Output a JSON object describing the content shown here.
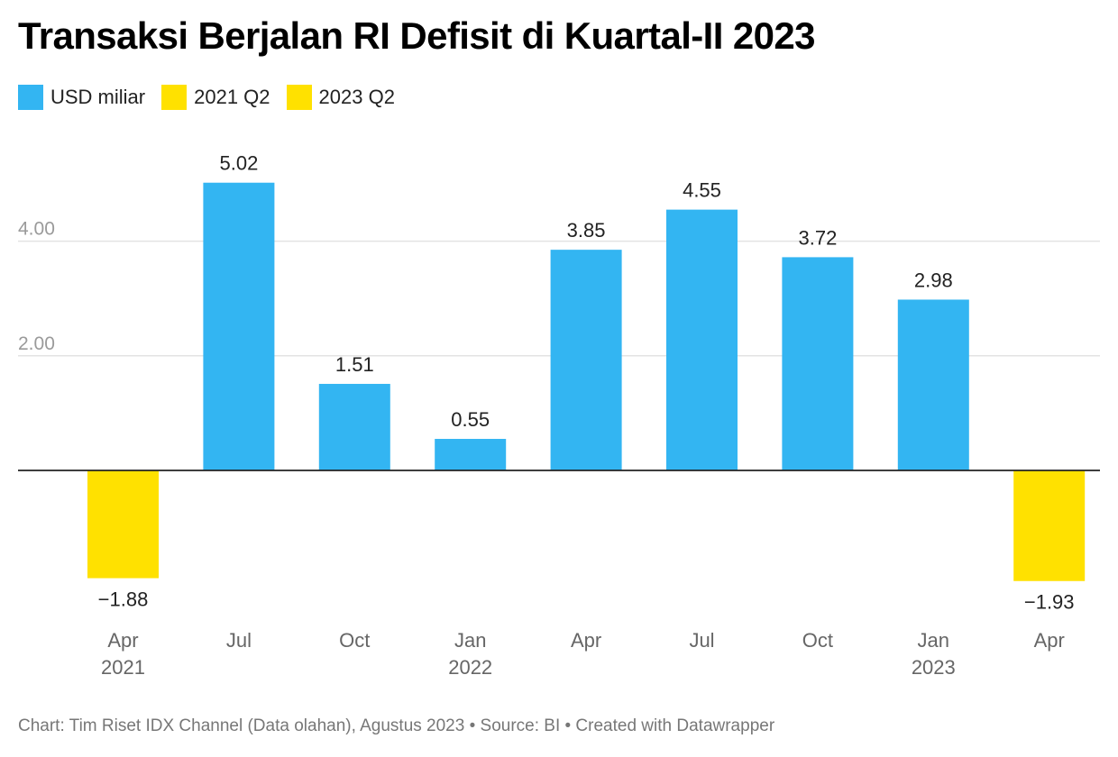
{
  "title": "Transaksi Berjalan RI Defisit di Kuartal-II 2023",
  "legend": [
    {
      "label": "USD miliar",
      "color": "#33b5f2"
    },
    {
      "label": "2021 Q2",
      "color": "#ffe100"
    },
    {
      "label": "2023 Q2",
      "color": "#ffe100"
    }
  ],
  "chart_data": {
    "type": "bar",
    "categories": [
      "Apr 2021",
      "Jul",
      "Oct",
      "Jan 2022",
      "Apr",
      "Jul",
      "Oct",
      "Jan 2023",
      "Apr"
    ],
    "x_tick_labels": [
      [
        "Apr",
        "2021"
      ],
      [
        "Jul",
        ""
      ],
      [
        "Oct",
        ""
      ],
      [
        "Jan",
        "2022"
      ],
      [
        "Apr",
        ""
      ],
      [
        "Jul",
        ""
      ],
      [
        "Oct",
        ""
      ],
      [
        "Jan",
        "2023"
      ],
      [
        "Apr",
        ""
      ]
    ],
    "values": [
      -1.88,
      5.02,
      1.51,
      0.55,
      3.85,
      4.55,
      3.72,
      2.98,
      -1.93
    ],
    "value_labels": [
      "−1.88",
      "5.02",
      "1.51",
      "0.55",
      "3.85",
      "4.55",
      "3.72",
      "2.98",
      "−1.93"
    ],
    "bar_colors": [
      "#ffe100",
      "#33b5f2",
      "#33b5f2",
      "#33b5f2",
      "#33b5f2",
      "#33b5f2",
      "#33b5f2",
      "#33b5f2",
      "#ffe100"
    ],
    "y_ticks": [
      2,
      4
    ],
    "y_tick_labels": [
      "2.00",
      "4.00"
    ],
    "ylim": [
      -2.5,
      5.5
    ],
    "grid": true,
    "legend_position": "top-left",
    "xlabel": "",
    "ylabel": ""
  },
  "footer": "Chart: Tim Riset IDX Channel (Data olahan), Agustus 2023 • Source: BI • Created with Datawrapper"
}
